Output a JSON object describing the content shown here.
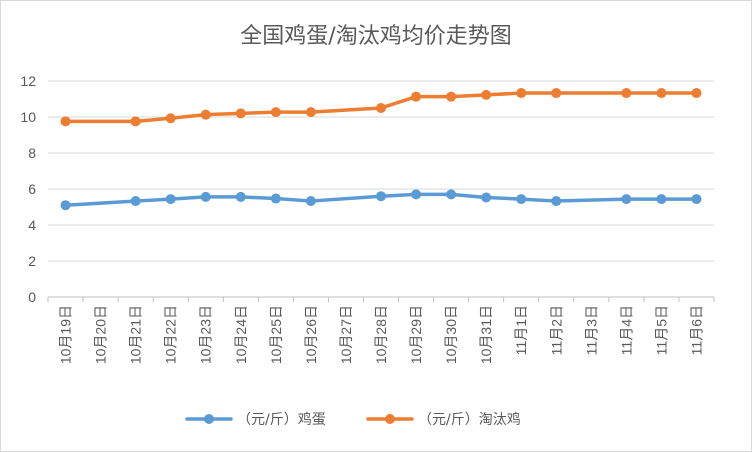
{
  "chart_data": {
    "type": "line",
    "title": "全国鸡蛋/淘汰鸡均价走势图",
    "xlabel": "",
    "ylabel": "",
    "ylim": [
      0,
      12
    ],
    "yticks": [
      0,
      2,
      4,
      6,
      8,
      10,
      12
    ],
    "grid": true,
    "legend_position": "bottom",
    "categories": [
      "10月19日",
      "10月20日",
      "10月21日",
      "10月22日",
      "10月23日",
      "10月24日",
      "10月25日",
      "10月26日",
      "10月27日",
      "10月28日",
      "10月29日",
      "10月30日",
      "10月31日",
      "11月1日",
      "11月2日",
      "11月3日",
      "11月4日",
      "11月5日",
      "11月6日"
    ],
    "series": [
      {
        "name": "（元/斤）鸡蛋",
        "color": "#5b9bd5",
        "values": [
          5.1,
          null,
          5.33,
          5.44,
          5.56,
          5.56,
          5.47,
          5.33,
          null,
          5.6,
          5.7,
          5.7,
          5.53,
          5.44,
          5.33,
          null,
          5.44,
          5.44,
          5.44
        ]
      },
      {
        "name": "（元/斤）淘汰鸡",
        "color": "#ed7d31",
        "values": [
          9.76,
          null,
          9.76,
          9.93,
          10.13,
          10.2,
          10.27,
          10.27,
          null,
          10.5,
          11.13,
          11.13,
          11.23,
          11.33,
          11.33,
          null,
          11.33,
          11.33,
          11.33
        ]
      }
    ]
  }
}
